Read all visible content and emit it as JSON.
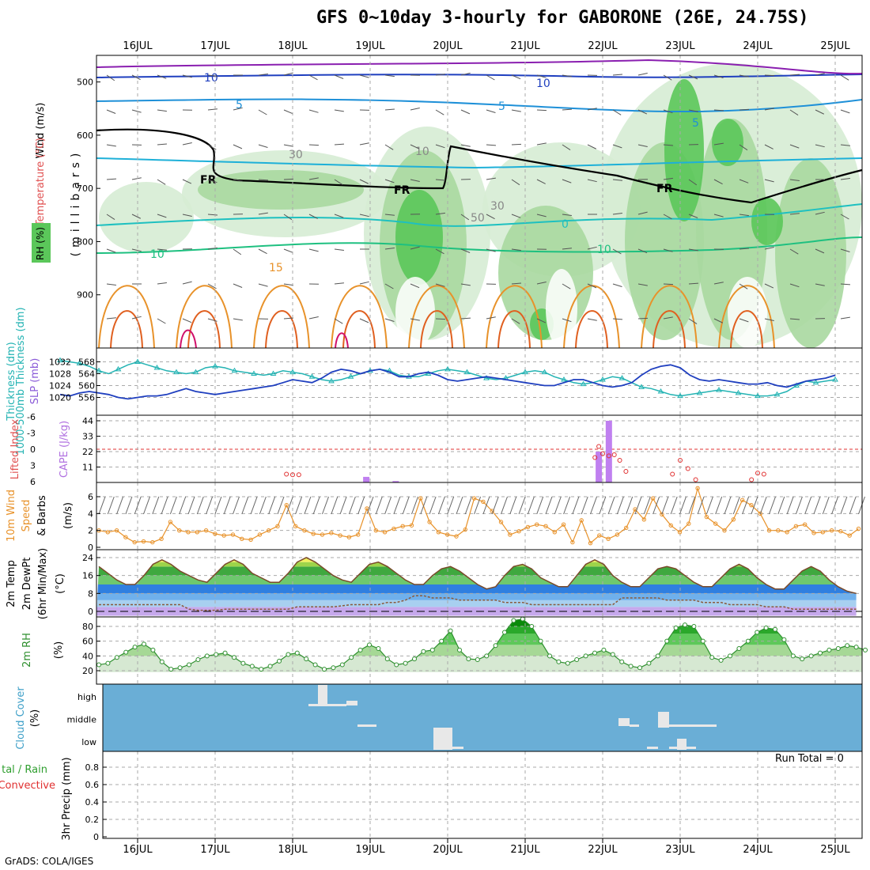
{
  "title": "GFS 0~10day 3-hourly for GABORONE (26E, 24.75S)",
  "credit": "GrADS: COLA/IGES",
  "run_total": "Run Total = 0",
  "dates": [
    "16JUL",
    "17JUL",
    "18JUL",
    "19JUL",
    "20JUL",
    "21JUL",
    "22JUL",
    "23JUL",
    "24JUL",
    "25JUL"
  ],
  "colors": {
    "grid": "#aaaaaa",
    "green_light": "#d6ecd4",
    "green_mid": "#a8d8a0",
    "green_dark": "#5bc75a",
    "wind_barb": "#555555"
  },
  "chart_data": [
    {
      "type": "heatmap",
      "name": "upper-air",
      "ylabels": [
        "Wind (m/s)",
        "Temperature (°C)",
        "RH (%)",
        "(millibars)"
      ],
      "yticks": [
        500,
        600,
        700,
        800,
        900
      ],
      "ylim": [
        1000,
        450
      ],
      "contour_labels": [
        "10",
        "10",
        "5",
        "5",
        "5",
        "FR",
        "FR",
        "FR",
        "30",
        "30",
        "50",
        "10",
        "10",
        "15",
        "0",
        "10"
      ]
    },
    {
      "type": "line",
      "name": "thickness-slp",
      "ylabels": [
        "1000-500mb Thickness (dm)",
        "SLP (mb)"
      ],
      "left_ticks": [
        556,
        560,
        564,
        568
      ],
      "right_ticks": [
        1020,
        1024,
        1028,
        1032
      ],
      "series": [
        {
          "name": "1000-500mb Thickness (dm)",
          "color": "#23b3b3",
          "values": [
            568.5,
            568.0,
            567.5,
            566.5,
            565.0,
            564.0,
            565.5,
            567.0,
            568.0,
            567.0,
            566.0,
            565.0,
            564.5,
            564.0,
            564.5,
            566.0,
            566.5,
            566.0,
            565.0,
            564.5,
            564.0,
            563.5,
            564.0,
            565.0,
            564.5,
            564.0,
            563.0,
            562.0,
            561.5,
            562.0,
            563.0,
            564.0,
            565.0,
            565.5,
            565.0,
            563.5,
            563.0,
            563.0,
            564.0,
            565.0,
            565.5,
            565.0,
            564.5,
            563.5,
            562.5,
            562.0,
            562.5,
            563.5,
            564.5,
            565.0,
            564.5,
            563.0,
            562.0,
            561.0,
            560.5,
            561.0,
            562.0,
            563.0,
            562.5,
            561.0,
            559.5,
            559.0,
            558.0,
            557.0,
            556.5,
            557.0,
            557.5,
            558.0,
            558.5,
            558.0,
            557.5,
            557.0,
            556.5,
            556.5,
            557.0,
            558.0,
            560.0,
            561.5,
            561.0,
            561.5,
            562.0
          ]
        },
        {
          "name": "SLP (mb)",
          "color": "#1f3fbf",
          "values": [
            1021.0,
            1020.5,
            1021.5,
            1022.0,
            1021.5,
            1021.0,
            1020.0,
            1019.5,
            1020.0,
            1020.5,
            1020.5,
            1021.0,
            1022.0,
            1023.0,
            1022.0,
            1021.5,
            1021.0,
            1021.5,
            1022.0,
            1022.5,
            1023.0,
            1023.5,
            1024.0,
            1025.0,
            1026.0,
            1025.5,
            1025.0,
            1026.5,
            1028.5,
            1029.5,
            1029.0,
            1028.0,
            1029.0,
            1029.5,
            1028.5,
            1027.0,
            1027.0,
            1028.0,
            1028.5,
            1027.5,
            1026.0,
            1025.5,
            1026.0,
            1026.5,
            1027.0,
            1026.5,
            1026.0,
            1025.5,
            1025.0,
            1024.5,
            1024.0,
            1024.0,
            1025.0,
            1026.0,
            1026.0,
            1025.0,
            1024.0,
            1023.5,
            1024.0,
            1025.0,
            1027.5,
            1029.5,
            1030.5,
            1031.0,
            1030.0,
            1027.5,
            1026.0,
            1025.5,
            1026.0,
            1025.5,
            1025.0,
            1024.5,
            1024.5,
            1025.0,
            1024.0,
            1023.5,
            1024.5,
            1025.5,
            1026.0,
            1026.5,
            1027.5
          ]
        }
      ]
    },
    {
      "type": "bar",
      "name": "cape-li",
      "ylabels": [
        "Lifted Index",
        "CAPE (J/kg)"
      ],
      "left_ticks": [
        "-6",
        "-3",
        "0",
        "3",
        "6"
      ],
      "right_ticks": [
        11,
        22,
        33,
        44
      ],
      "cape_bars": [
        {
          "day": 3.45,
          "value": 4
        },
        {
          "day": 3.83,
          "value": 1
        },
        {
          "day": 6.45,
          "value": 22
        },
        {
          "day": 6.58,
          "value": 44
        }
      ],
      "li_points": [
        {
          "day": 2.42,
          "value": 4.5
        },
        {
          "day": 2.5,
          "value": 4.6
        },
        {
          "day": 2.58,
          "value": 4.6
        },
        {
          "day": 6.4,
          "value": 1.5
        },
        {
          "day": 6.45,
          "value": -0.5
        },
        {
          "day": 6.5,
          "value": 0.8
        },
        {
          "day": 6.58,
          "value": 1.2
        },
        {
          "day": 6.65,
          "value": 1.0
        },
        {
          "day": 6.72,
          "value": 2.0
        },
        {
          "day": 6.8,
          "value": 4.0
        },
        {
          "day": 7.4,
          "value": 4.5
        },
        {
          "day": 7.5,
          "value": 2.0
        },
        {
          "day": 7.6,
          "value": 3.5
        },
        {
          "day": 7.7,
          "value": 5.5
        },
        {
          "day": 8.42,
          "value": 5.5
        },
        {
          "day": 8.5,
          "value": 4.3
        },
        {
          "day": 8.58,
          "value": 4.5
        }
      ]
    },
    {
      "type": "line",
      "name": "wind-10m",
      "ylabels": [
        "10m Wind Speed",
        "& Barbs",
        "(m/s)"
      ],
      "left_ticks": [
        0,
        2,
        4,
        6
      ],
      "series": [
        {
          "name": "10m Wind Speed",
          "color": "#e8922a",
          "values": [
            2.0,
            1.8,
            2.0,
            1.2,
            0.6,
            0.7,
            0.6,
            1.0,
            3.0,
            2.0,
            1.8,
            1.8,
            2.0,
            1.6,
            1.4,
            1.5,
            1.0,
            0.9,
            1.5,
            2.0,
            2.5,
            5.0,
            2.5,
            2.0,
            1.6,
            1.5,
            1.7,
            1.4,
            1.2,
            1.5,
            4.6,
            2.0,
            1.8,
            2.2,
            2.5,
            2.6,
            5.8,
            3.0,
            1.8,
            1.5,
            1.3,
            2.1,
            5.8,
            5.4,
            4.3,
            3.0,
            1.5,
            1.9,
            2.4,
            2.7,
            2.5,
            1.8,
            2.7,
            0.6,
            3.2,
            0.5,
            1.4,
            1.0,
            1.5,
            2.3,
            4.5,
            3.3,
            5.8,
            3.9,
            2.6,
            1.8,
            2.8,
            7.0,
            3.6,
            2.8,
            2.0,
            3.3,
            5.6,
            5.0,
            4.0,
            2.0,
            2.0,
            1.8,
            2.5,
            2.7,
            1.7,
            1.8,
            2.0,
            1.9,
            1.4,
            2.2
          ]
        }
      ]
    },
    {
      "type": "area",
      "name": "temperature",
      "ylabels": [
        "2m Temp",
        "2m DewPt",
        "(6hr Min/Max)",
        "(°C)"
      ],
      "left_ticks": [
        0,
        8,
        16,
        24
      ],
      "series": [
        {
          "name": "2m Temp",
          "color": "#3a8f2e",
          "values": [
            20,
            17,
            14,
            12,
            12,
            16,
            21,
            23,
            21,
            18,
            16,
            14,
            13,
            17,
            21,
            23,
            21,
            17,
            15,
            13,
            13,
            17,
            22,
            24,
            22,
            19,
            16,
            14,
            13,
            17,
            21,
            22,
            20,
            17,
            14,
            12,
            12,
            16,
            19,
            20,
            18,
            15,
            12,
            10,
            11,
            16,
            20,
            21,
            19,
            15,
            13,
            11,
            11,
            16,
            21,
            23,
            21,
            16,
            13,
            11,
            11,
            15,
            19,
            20,
            19,
            16,
            13,
            11,
            11,
            15,
            19,
            21,
            19,
            15,
            12,
            10,
            10,
            14,
            18,
            20,
            18,
            14,
            11,
            9,
            8
          ]
        },
        {
          "name": "2m DewPt",
          "color": "#8a5a3c",
          "values": [
            3,
            3,
            3,
            3,
            3,
            3,
            3,
            3,
            3,
            3,
            1,
            0.5,
            0.5,
            0.5,
            1,
            1,
            1,
            1,
            1,
            1,
            1,
            1,
            2,
            2,
            2,
            2,
            2,
            2.5,
            3,
            3,
            3,
            3,
            4,
            4,
            5,
            7,
            7,
            6,
            6,
            6,
            5,
            5,
            5,
            5,
            5,
            4,
            4,
            4,
            3,
            3,
            3,
            3,
            3,
            3,
            3,
            3,
            3,
            3,
            6,
            6,
            6,
            6,
            6,
            5,
            5,
            5,
            5,
            4,
            4,
            4,
            3,
            3,
            3,
            3,
            2,
            2,
            2,
            1,
            1,
            1,
            1,
            1,
            1,
            1,
            1
          ]
        }
      ]
    },
    {
      "type": "area",
      "name": "relative-humidity",
      "ylabels": [
        "2m RH",
        "(%)"
      ],
      "left_ticks": [
        20,
        40,
        60,
        80
      ],
      "series": [
        {
          "name": "2m RH",
          "color": "#2e8f2e",
          "values": [
            28,
            30,
            38,
            45,
            52,
            56,
            48,
            32,
            22,
            24,
            28,
            35,
            40,
            42,
            44,
            38,
            30,
            26,
            22,
            26,
            33,
            42,
            44,
            36,
            28,
            22,
            24,
            28,
            38,
            48,
            55,
            50,
            36,
            28,
            30,
            36,
            46,
            48,
            60,
            74,
            48,
            36,
            35,
            40,
            54,
            72,
            88,
            90,
            80,
            60,
            40,
            32,
            30,
            35,
            40,
            44,
            48,
            42,
            32,
            26,
            24,
            30,
            40,
            60,
            78,
            82,
            80,
            60,
            38,
            34,
            40,
            50,
            60,
            72,
            78,
            76,
            62,
            40,
            36,
            40,
            44,
            48,
            50,
            54,
            52,
            48
          ]
        }
      ]
    },
    {
      "type": "bar",
      "name": "cloud-cover",
      "ylabels": [
        "Cloud Cover",
        "(%)"
      ],
      "categories": [
        "high",
        "middle",
        "low"
      ]
    },
    {
      "type": "line",
      "name": "precipitation",
      "ylabels": [
        "Total / Rain",
        "Convective",
        "3hr Precip (mm)"
      ],
      "left_ticks": [
        0,
        0.2,
        0.4,
        0.6,
        0.8
      ],
      "ylim": [
        0,
        1
      ]
    }
  ]
}
